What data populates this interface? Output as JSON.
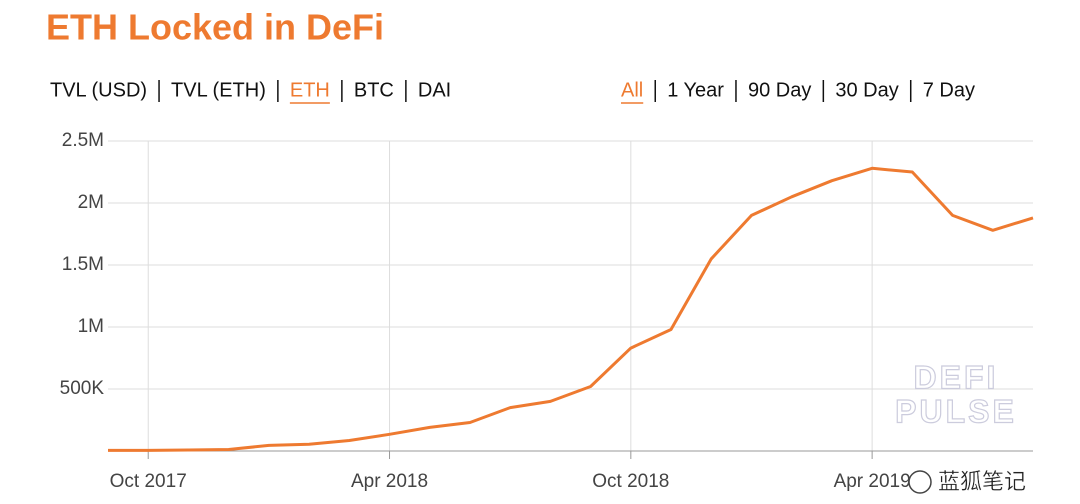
{
  "chart_data": {
    "type": "line",
    "title": "ETH Locked in DeFi",
    "asset_tabs": [
      {
        "label": "TVL (USD)",
        "active": false
      },
      {
        "label": "TVL (ETH)",
        "active": false
      },
      {
        "label": "ETH",
        "active": true
      },
      {
        "label": "BTC",
        "active": false
      },
      {
        "label": "DAI",
        "active": false
      }
    ],
    "range_tabs": [
      {
        "label": "All",
        "active": true
      },
      {
        "label": "1 Year",
        "active": false
      },
      {
        "label": "90 Day",
        "active": false
      },
      {
        "label": "30 Day",
        "active": false
      },
      {
        "label": "7 Day",
        "active": false
      }
    ],
    "x": [
      "2017-09",
      "2017-10",
      "2017-11",
      "2017-12",
      "2018-01",
      "2018-02",
      "2018-03",
      "2018-04",
      "2018-05",
      "2018-06",
      "2018-07",
      "2018-08",
      "2018-09",
      "2018-10",
      "2018-11",
      "2018-12",
      "2019-01",
      "2019-02",
      "2019-03",
      "2019-04",
      "2019-05",
      "2019-06",
      "2019-07",
      "2019-08"
    ],
    "values": [
      5000,
      5000,
      8000,
      12000,
      45000,
      55000,
      85000,
      135000,
      190000,
      230000,
      350000,
      400000,
      520000,
      830000,
      980000,
      1550000,
      1900000,
      2050000,
      2180000,
      2280000,
      2250000,
      1900000,
      1780000,
      1880000
    ],
    "color": "#ee7a30",
    "xlim": [
      "2017-09",
      "2019-08"
    ],
    "xticks": [
      {
        "value": "2017-10",
        "label": "Oct 2017"
      },
      {
        "value": "2018-04",
        "label": "Apr 2018"
      },
      {
        "value": "2018-10",
        "label": "Oct 2018"
      },
      {
        "value": "2019-04",
        "label": "Apr 2019"
      }
    ],
    "ylim": [
      0,
      2500000
    ],
    "yticks": [
      {
        "value": 500000,
        "label": "500K"
      },
      {
        "value": 1000000,
        "label": "1M"
      },
      {
        "value": 1500000,
        "label": "1.5M"
      },
      {
        "value": 2000000,
        "label": "2M"
      },
      {
        "value": 2500000,
        "label": "2.5M"
      }
    ],
    "grid": true,
    "watermark": [
      "DEFI",
      "PULSE"
    ],
    "credit": "蓝狐笔记"
  }
}
